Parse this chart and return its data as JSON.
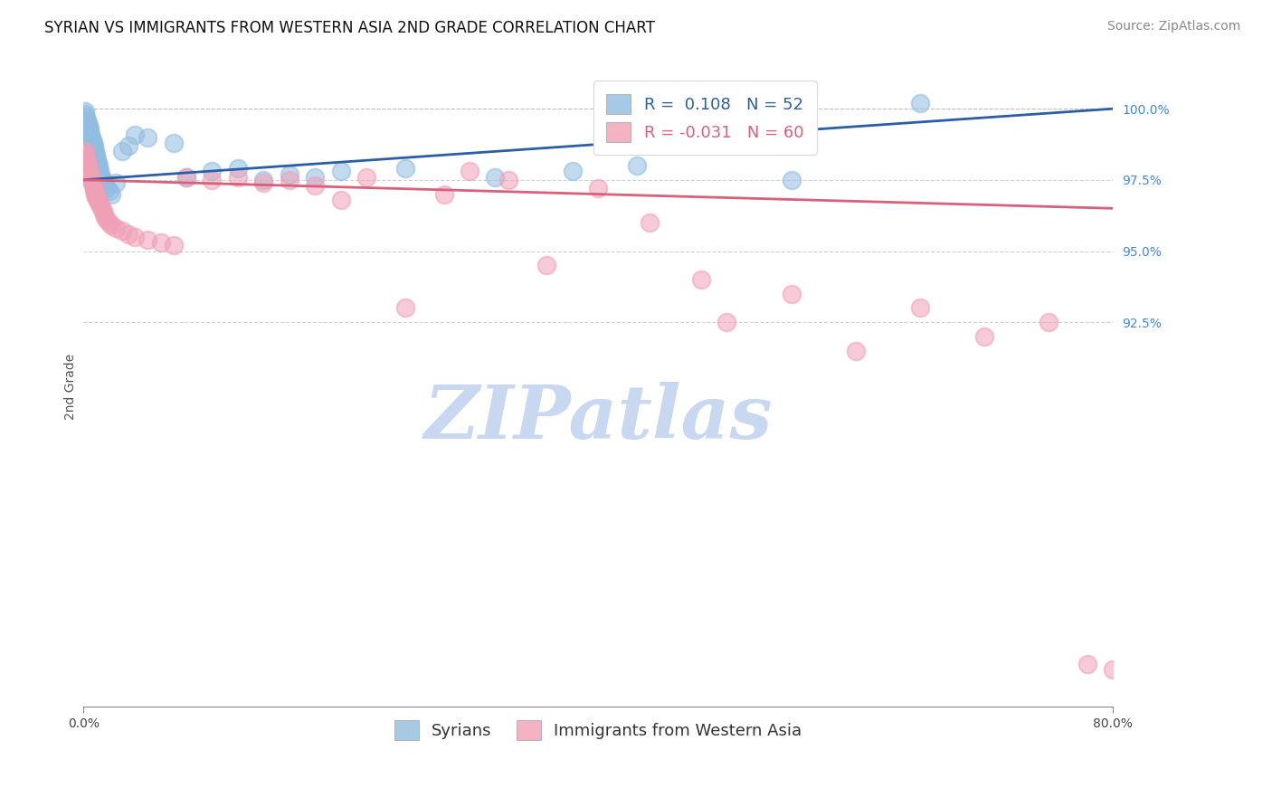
{
  "title": "SYRIAN VS IMMIGRANTS FROM WESTERN ASIA 2ND GRADE CORRELATION CHART",
  "source": "Source: ZipAtlas.com",
  "ylabel": "2nd Grade",
  "xlim": [
    0.0,
    80.0
  ],
  "ylim": [
    79.0,
    101.5
  ],
  "yticks": [
    92.5,
    95.0,
    97.5,
    100.0
  ],
  "blue_R": 0.108,
  "blue_N": 52,
  "pink_R": -0.031,
  "pink_N": 60,
  "blue_color": "#90BDE0",
  "pink_color": "#F0A0B5",
  "blue_line_color": "#2B5EA7",
  "pink_line_color": "#D9607A",
  "watermark": "ZIPatlas",
  "watermark_color": "#C8D8F0",
  "legend_label_blue": "Syrians",
  "legend_label_pink": "Immigrants from Western Asia",
  "blue_x": [
    0.1,
    0.15,
    0.2,
    0.25,
    0.3,
    0.35,
    0.4,
    0.45,
    0.5,
    0.55,
    0.6,
    0.65,
    0.7,
    0.75,
    0.8,
    0.85,
    0.9,
    0.95,
    1.0,
    1.05,
    1.1,
    1.15,
    1.2,
    1.25,
    1.3,
    1.35,
    1.4,
    1.5,
    1.6,
    1.7,
    1.8,
    2.0,
    2.2,
    2.5,
    3.0,
    3.5,
    4.0,
    5.0,
    7.0,
    8.0,
    10.0,
    12.0,
    14.0,
    16.0,
    18.0,
    20.0,
    25.0,
    32.0,
    38.0,
    43.0,
    55.0,
    65.0
  ],
  "blue_y": [
    99.9,
    99.8,
    99.7,
    99.6,
    99.5,
    99.5,
    99.4,
    99.3,
    99.2,
    99.1,
    99.0,
    98.9,
    98.9,
    98.8,
    98.7,
    98.6,
    98.5,
    98.4,
    98.3,
    98.2,
    98.1,
    98.0,
    97.9,
    97.8,
    97.7,
    97.6,
    97.5,
    97.5,
    97.4,
    97.3,
    97.2,
    97.1,
    97.0,
    97.4,
    98.5,
    98.7,
    99.1,
    99.0,
    98.8,
    97.6,
    97.8,
    97.9,
    97.5,
    97.7,
    97.6,
    97.8,
    97.9,
    97.6,
    97.8,
    98.0,
    97.5,
    100.2
  ],
  "pink_x": [
    0.1,
    0.15,
    0.2,
    0.25,
    0.3,
    0.35,
    0.4,
    0.45,
    0.5,
    0.55,
    0.6,
    0.65,
    0.7,
    0.75,
    0.8,
    0.85,
    0.9,
    0.95,
    1.0,
    1.1,
    1.2,
    1.3,
    1.4,
    1.5,
    1.6,
    1.7,
    1.8,
    2.0,
    2.2,
    2.5,
    3.0,
    3.5,
    4.0,
    5.0,
    6.0,
    7.0,
    8.0,
    10.0,
    12.0,
    14.0,
    16.0,
    18.0,
    20.0,
    22.0,
    25.0,
    28.0,
    30.0,
    33.0,
    36.0,
    40.0,
    44.0,
    48.0,
    50.0,
    55.0,
    60.0,
    65.0,
    70.0,
    75.0,
    78.0,
    80.0
  ],
  "pink_y": [
    98.5,
    98.4,
    98.3,
    98.2,
    98.1,
    98.0,
    97.9,
    97.8,
    97.7,
    97.6,
    97.5,
    97.5,
    97.4,
    97.3,
    97.2,
    97.1,
    97.0,
    97.0,
    96.9,
    96.8,
    96.7,
    96.6,
    96.5,
    96.4,
    96.3,
    96.2,
    96.1,
    96.0,
    95.9,
    95.8,
    95.7,
    95.6,
    95.5,
    95.4,
    95.3,
    95.2,
    97.6,
    97.5,
    97.6,
    97.4,
    97.5,
    97.3,
    96.8,
    97.6,
    93.0,
    97.0,
    97.8,
    97.5,
    94.5,
    97.2,
    96.0,
    94.0,
    92.5,
    93.5,
    91.5,
    93.0,
    92.0,
    92.5,
    80.5,
    80.3
  ],
  "title_fontsize": 12,
  "source_fontsize": 10,
  "axis_label_fontsize": 10,
  "tick_fontsize": 10,
  "legend_fontsize": 13
}
